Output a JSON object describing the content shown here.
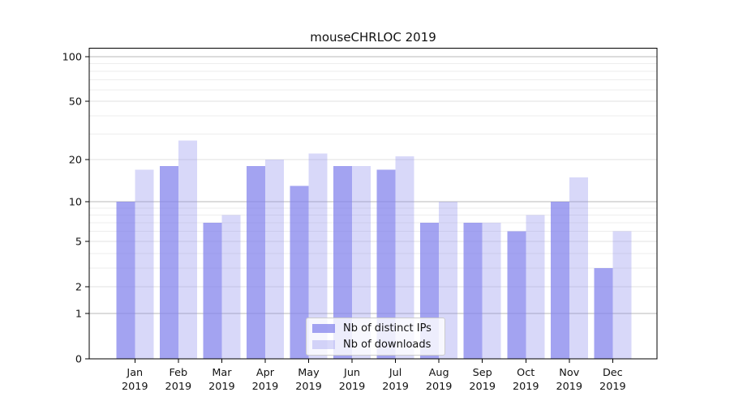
{
  "chart_data": {
    "type": "bar",
    "title": "mouseCHRLOC 2019",
    "categories": [
      "Jan 2019",
      "Feb 2019",
      "Mar 2019",
      "Apr 2019",
      "May 2019",
      "Jun 2019",
      "Jul 2019",
      "Aug 2019",
      "Sep 2019",
      "Oct 2019",
      "Nov 2019",
      "Dec 2019"
    ],
    "series": [
      {
        "name": "Nb of distinct IPs",
        "color": "#7f7feb",
        "alpha": 0.72,
        "values": [
          10,
          18,
          7,
          18,
          13,
          18,
          17,
          7,
          7,
          6,
          10,
          3
        ]
      },
      {
        "name": "Nb of downloads",
        "color": "#7f7feb",
        "alpha": 0.3,
        "values": [
          17,
          27,
          8,
          20,
          22,
          18,
          21,
          10,
          7,
          8,
          15,
          6
        ]
      }
    ],
    "y_axis": {
      "scale": "log1p",
      "ticks": [
        0,
        1,
        2,
        5,
        10,
        20,
        50,
        100
      ],
      "minor_gridlines": [
        3,
        4,
        6,
        7,
        8,
        9,
        30,
        40,
        60,
        70,
        80,
        90
      ],
      "ylim": [
        0,
        115
      ]
    },
    "grid": true,
    "legend_position": "bottom-center",
    "colors": {
      "gridline_power10": "#b9b9b9",
      "gridline_major": "#e2e2e2",
      "gridline_minor": "#ededed",
      "axis": "#000000",
      "text": "#111111"
    }
  }
}
